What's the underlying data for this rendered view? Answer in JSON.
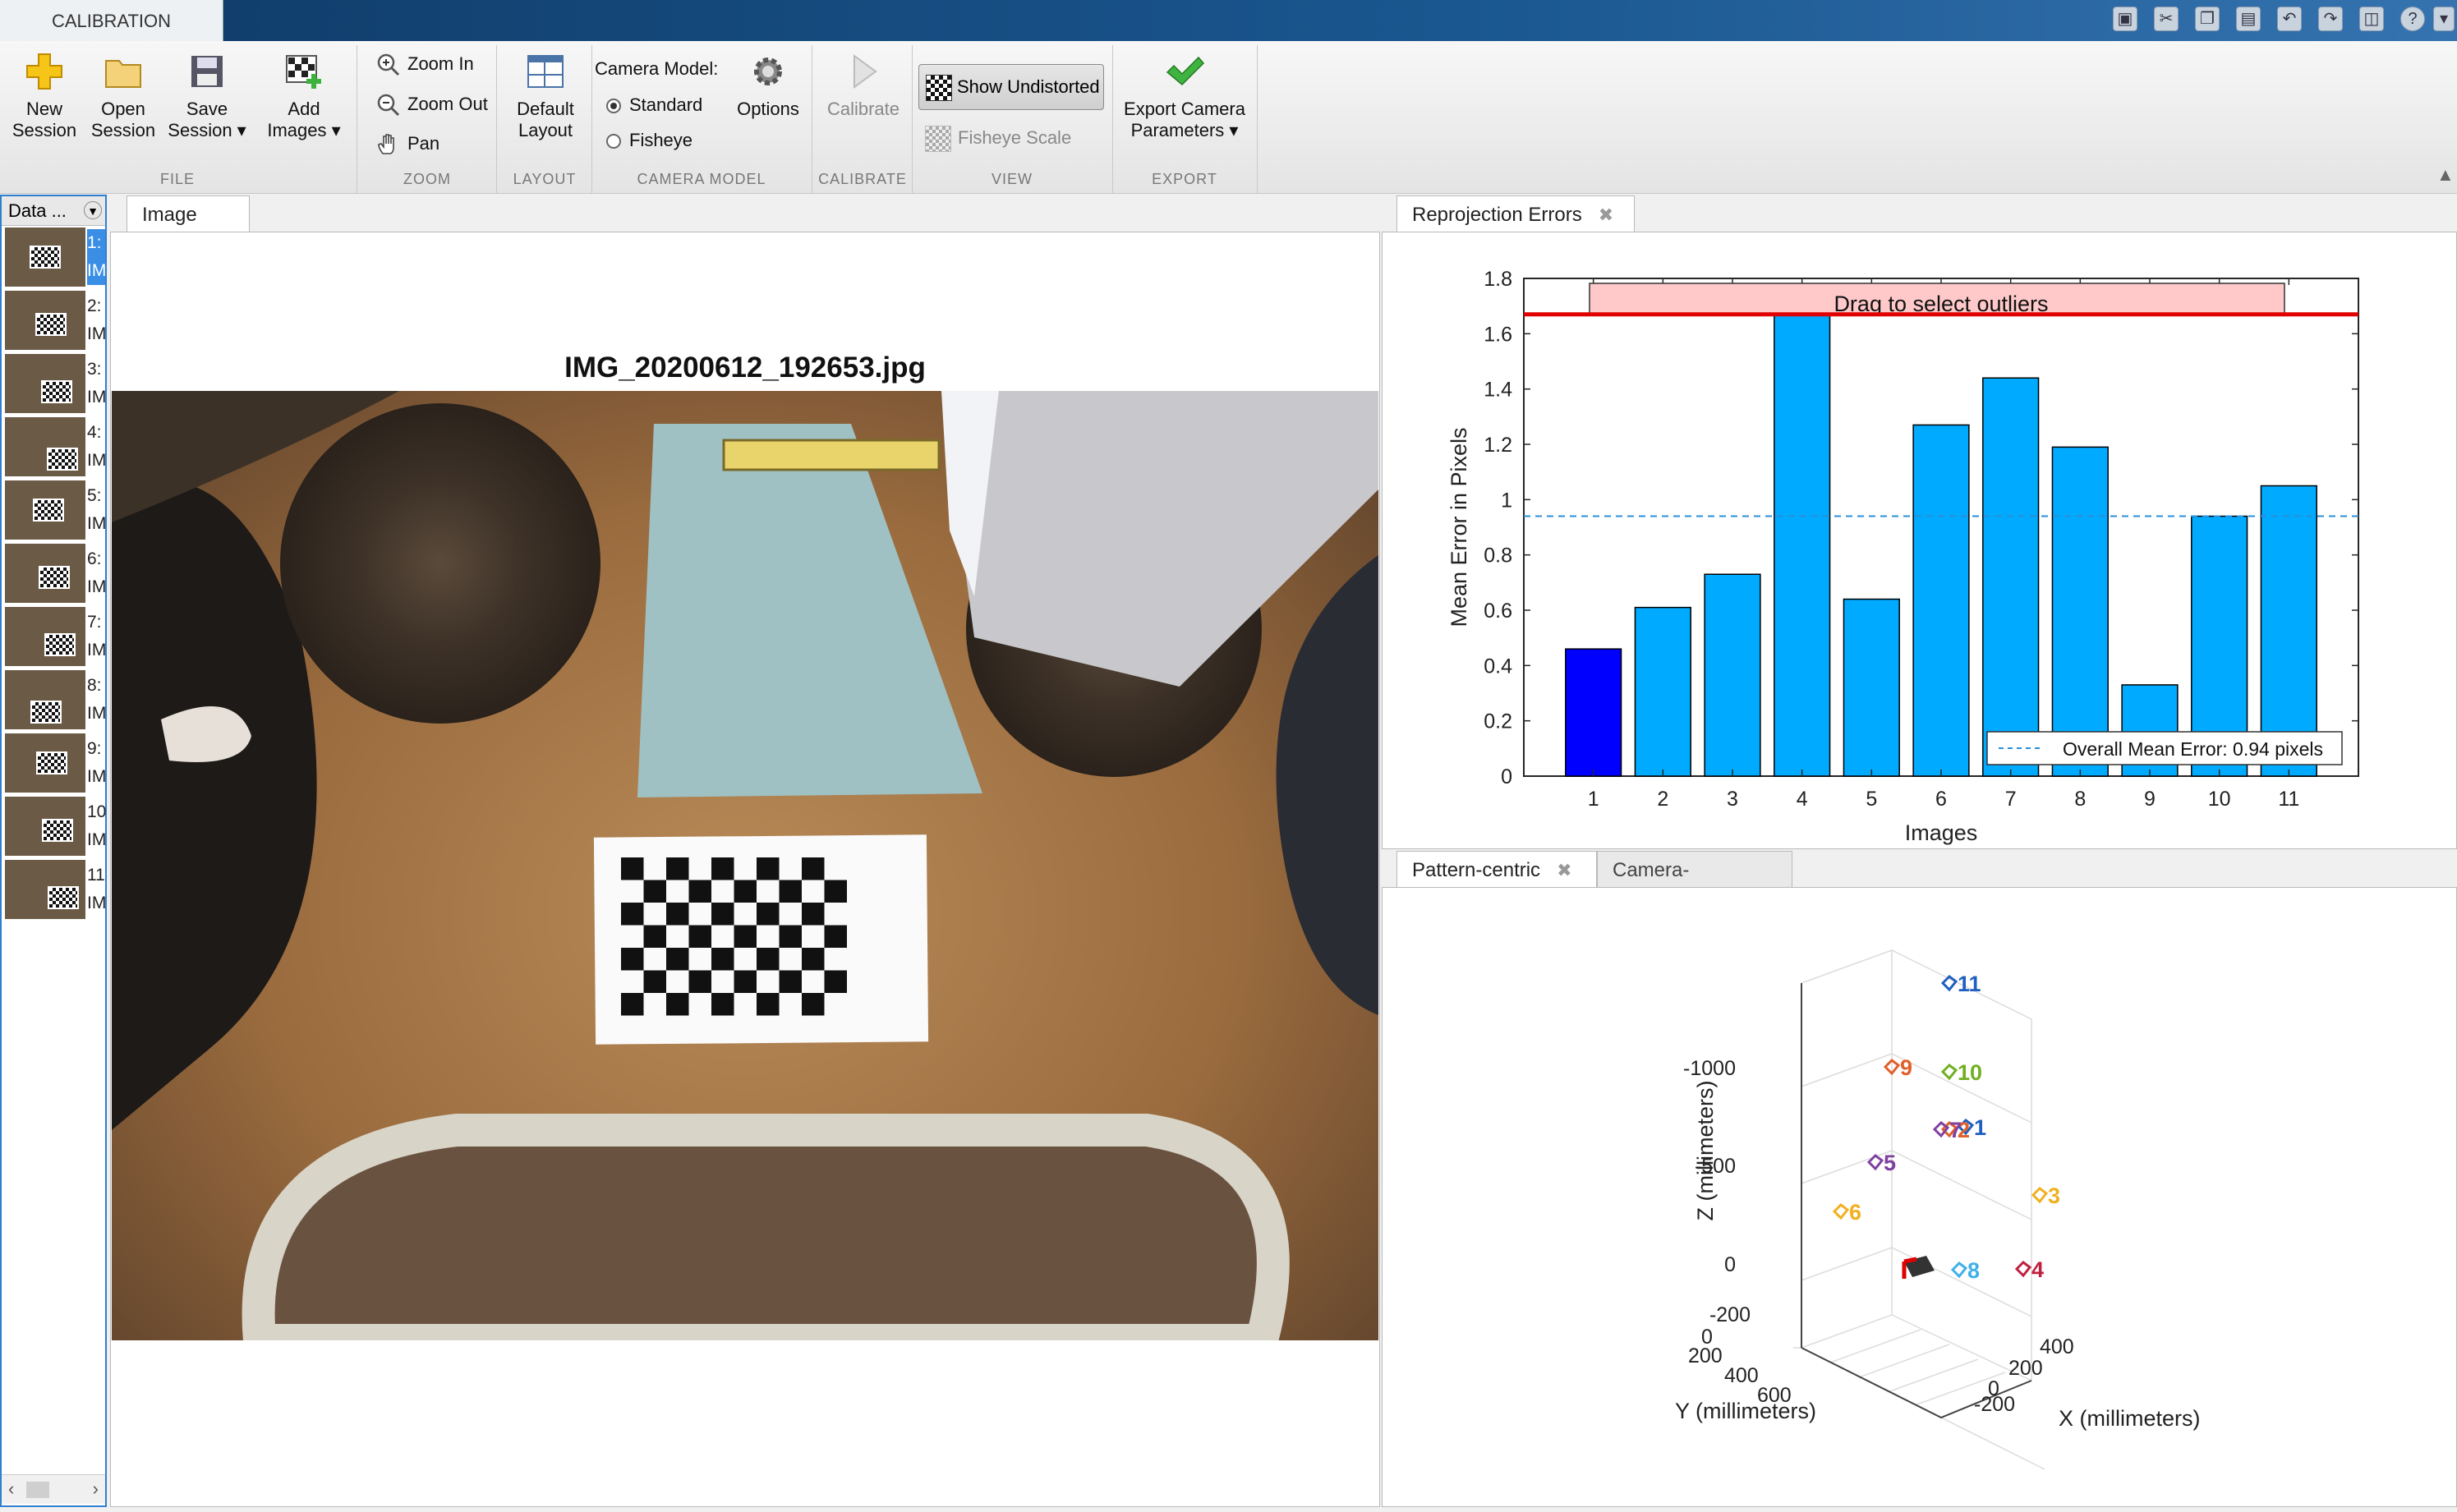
{
  "app": {
    "tab_label": "CALIBRATION"
  },
  "colors": {
    "accent": "#1a5790",
    "bar": "#00aaff",
    "bar_selected": "#0000ff",
    "threshold_line": "#e00000"
  },
  "toolstrip": {
    "file": {
      "label": "FILE",
      "new_session": [
        "New",
        "Session"
      ],
      "open_session": [
        "Open",
        "Session"
      ],
      "save_session": [
        "Save",
        "Session ▾"
      ],
      "add_images": [
        "Add",
        "Images ▾"
      ]
    },
    "zoom": {
      "label": "ZOOM",
      "zoom_in": "Zoom In",
      "zoom_out": "Zoom Out",
      "pan": "Pan"
    },
    "layout": {
      "label": "LAYOUT",
      "default_layout": [
        "Default",
        "Layout"
      ]
    },
    "camera_model": {
      "label": "CAMERA MODEL",
      "title": "Camera Model:",
      "standard": "Standard",
      "fisheye": "Fisheye",
      "selected": "Standard",
      "options": "Options"
    },
    "calibrate": {
      "label": "CALIBRATE",
      "button": "Calibrate"
    },
    "view": {
      "label": "VIEW",
      "show_undistorted": "Show Undistorted",
      "fisheye_scale": "Fisheye Scale"
    },
    "export": {
      "label": "EXPORT",
      "button": [
        "Export Camera",
        "Parameters ▾"
      ]
    }
  },
  "data_browser": {
    "header": "Data ...",
    "items": [
      "1:",
      "2:",
      "3:",
      "4:",
      "5:",
      "6:",
      "7:",
      "8:",
      "9:",
      "10",
      "11"
    ],
    "item_suffix": "IM",
    "selected_index": 0
  },
  "image_panel": {
    "tab": "Image",
    "title": "IMG_20200612_192653.jpg"
  },
  "reprojection_panel": {
    "tab": "Reprojection Errors"
  },
  "chart_data": [
    {
      "type": "bar",
      "categories": [
        "1",
        "2",
        "3",
        "4",
        "5",
        "6",
        "7",
        "8",
        "9",
        "10",
        "11"
      ],
      "values": [
        0.46,
        0.61,
        0.73,
        1.67,
        0.64,
        1.27,
        1.44,
        1.19,
        0.33,
        0.94,
        1.05
      ],
      "selected_bar": 0,
      "xlabel": "Images",
      "ylabel": "Mean Error in Pixels",
      "ylim": [
        0,
        1.8
      ],
      "yticks": [
        "0",
        "0.2",
        "0.4",
        "0.6",
        "0.8",
        "1",
        "1.2",
        "1.4",
        "1.6",
        "1.8"
      ],
      "mean_error": 0.94,
      "threshold": 1.67,
      "legend": "Overall Mean Error: 0.94 pixels",
      "legend_position": "bottom-right",
      "drag_label": "Drag to select outliers"
    }
  ],
  "extrinsics_panel": {
    "tabs": [
      "Pattern-centric",
      "Camera-centric"
    ],
    "active_tab": "Pattern-centric",
    "xlabel": "X (millimeters)",
    "ylabel": "Y (millimeters)",
    "zlabel": "Z (millimeters)",
    "zticks": [
      "-1000",
      "-500",
      "0"
    ],
    "yticks": [
      "-200",
      "0",
      "200",
      "400",
      "600"
    ],
    "xticks": [
      "-200",
      "0",
      "200",
      "400"
    ],
    "cameras": [
      {
        "label": "1",
        "color": "#1f5fbf"
      },
      {
        "label": "2",
        "color": "#e0602a"
      },
      {
        "label": "3",
        "color": "#f0b020"
      },
      {
        "label": "4",
        "color": "#c02040"
      },
      {
        "label": "5",
        "color": "#8040a0"
      },
      {
        "label": "6",
        "color": "#f0b020"
      },
      {
        "label": "7",
        "color": "#8040a0"
      },
      {
        "label": "8",
        "color": "#40b0e8"
      },
      {
        "label": "9",
        "color": "#e0602a"
      },
      {
        "label": "10",
        "color": "#70b020"
      },
      {
        "label": "11",
        "color": "#1f5fbf"
      }
    ]
  }
}
